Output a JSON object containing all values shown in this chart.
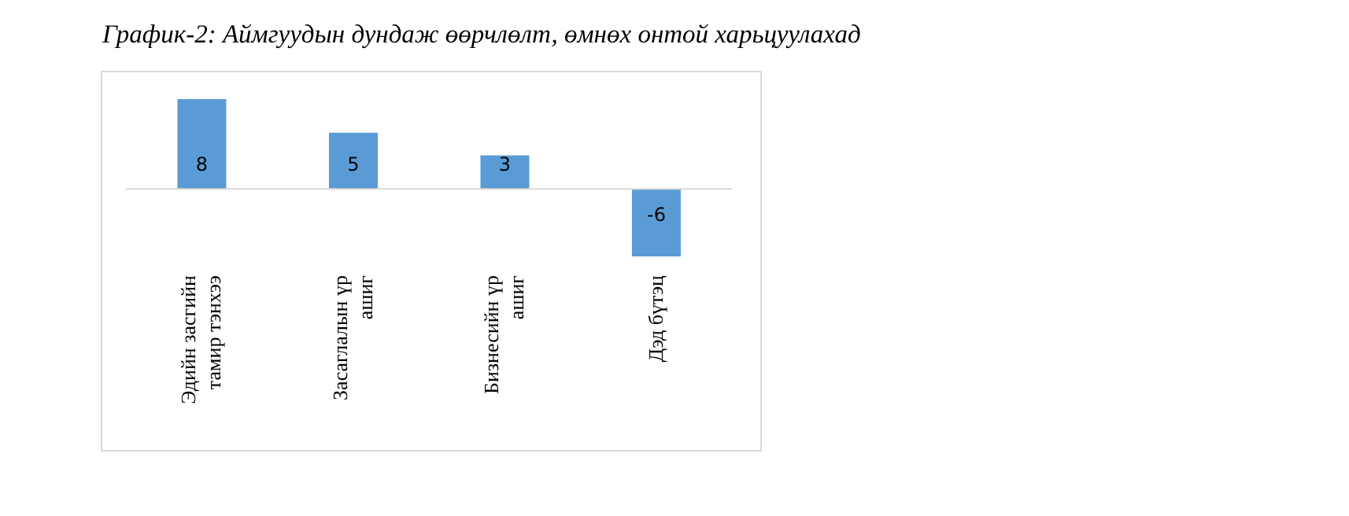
{
  "chart_data": {
    "type": "bar",
    "title": "График-2: Аймгуудын дундаж өөрчлөлт, өмнөх онтой харьцуулахад",
    "categories": [
      "Эдийн засгийн тамир тэнхээ",
      "Засаглалын үр ашиг",
      "Бизнесийн үр ашиг",
      "Дэд бүтэц"
    ],
    "values": [
      8,
      5,
      3,
      -6
    ],
    "color": "#5b9bd5",
    "data_labels": true,
    "grid": false,
    "legend": false
  }
}
